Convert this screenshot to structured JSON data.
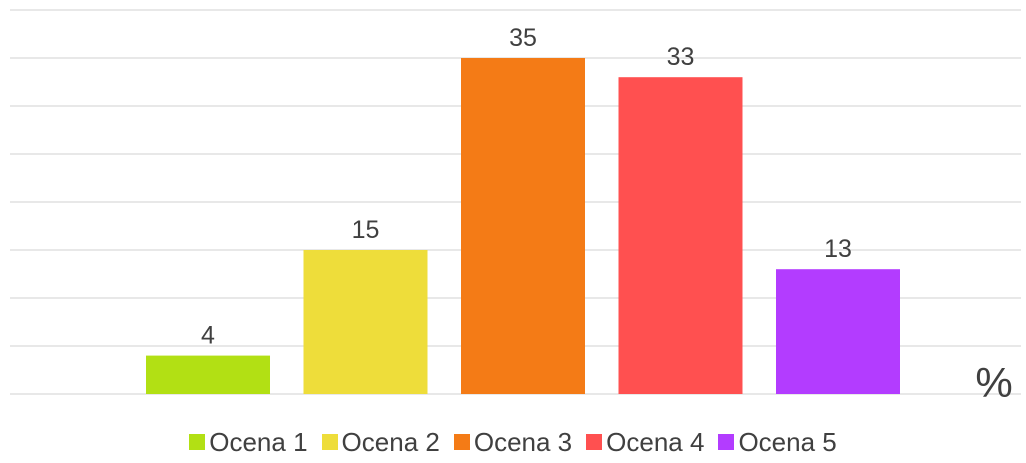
{
  "chart_data": {
    "type": "bar",
    "categories": [
      "Ocena 1",
      "Ocena 2",
      "Ocena 3",
      "Ocena 4",
      "Ocena 5"
    ],
    "values": [
      4,
      15,
      35,
      33,
      13
    ],
    "colors": [
      "#b2e014",
      "#eedd3a",
      "#f47b16",
      "#ff5050",
      "#b33cff"
    ],
    "unit": "%",
    "ylim": [
      0,
      40
    ],
    "grid": true,
    "legend_position": "bottom",
    "title": "",
    "xlabel": "",
    "ylabel": ""
  }
}
